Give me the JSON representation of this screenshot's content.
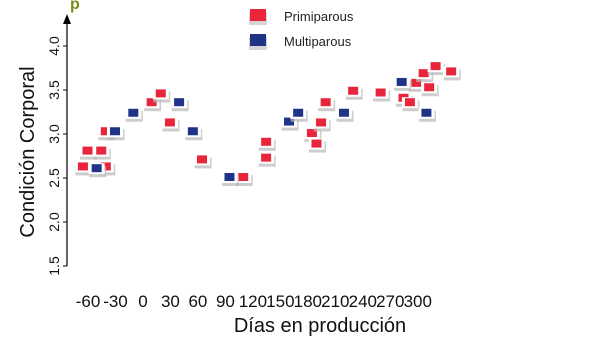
{
  "chart_data": {
    "type": "scatter",
    "title": "",
    "xlabel": "Días en producción",
    "ylabel": "Condición Corporal",
    "xlim": [
      -70,
      320
    ],
    "ylim": [
      1.5,
      4.2
    ],
    "xticks": [
      -60,
      -30,
      0,
      30,
      60,
      90,
      120,
      150,
      180,
      210,
      240,
      270,
      300
    ],
    "xtick_labels": [
      "-60",
      "-30",
      "0",
      "30",
      "60",
      "90",
      "120",
      "150",
      "180",
      "210",
      "240",
      "270",
      "300"
    ],
    "yticks": [
      1.5,
      2.0,
      2.5,
      3.0,
      3.5,
      4.0
    ],
    "ytick_labels": [
      "1.5",
      "2.0",
      "2.5",
      "3.0",
      "3.5",
      "4.0"
    ],
    "legend_position": "top-center",
    "grid": false,
    "stray_text": "p",
    "series": [
      {
        "name": "Primiparous",
        "color": "#e8253a",
        "points": [
          [
            -65,
            2.62
          ],
          [
            -60,
            2.8
          ],
          [
            -45,
            2.8
          ],
          [
            -40,
            3.02
          ],
          [
            -40,
            2.62
          ],
          [
            10,
            3.35
          ],
          [
            20,
            3.45
          ],
          [
            30,
            3.12
          ],
          [
            65,
            2.7
          ],
          [
            110,
            2.5
          ],
          [
            135,
            2.72
          ],
          [
            135,
            2.9
          ],
          [
            185,
            3.0
          ],
          [
            190,
            2.88
          ],
          [
            195,
            3.12
          ],
          [
            200,
            3.35
          ],
          [
            230,
            3.48
          ],
          [
            260,
            3.46
          ],
          [
            285,
            3.4
          ],
          [
            292,
            3.35
          ],
          [
            299,
            3.57
          ],
          [
            307,
            3.68
          ],
          [
            313,
            3.52
          ],
          [
            320,
            3.76
          ],
          [
            337,
            3.7
          ]
        ]
      },
      {
        "name": "Multiparous",
        "color": "#1f3489",
        "points": [
          [
            -50,
            2.6
          ],
          [
            -30,
            3.02
          ],
          [
            -10,
            3.23
          ],
          [
            40,
            3.35
          ],
          [
            55,
            3.02
          ],
          [
            95,
            2.5
          ],
          [
            160,
            3.13
          ],
          [
            170,
            3.23
          ],
          [
            220,
            3.23
          ],
          [
            283,
            3.58
          ],
          [
            310,
            3.23
          ]
        ]
      }
    ]
  }
}
